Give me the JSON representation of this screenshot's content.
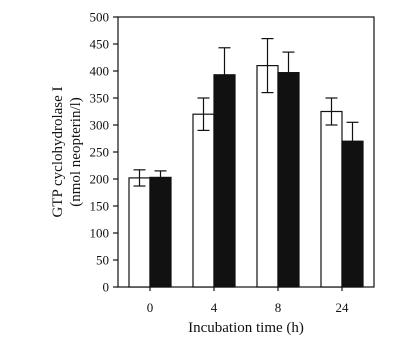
{
  "chart_data": {
    "type": "bar",
    "xlabel": "Incubation time (h)",
    "ylabel_line1": "GTP cyclohydrolase I",
    "ylabel_line2": "(nmol neopterin/l)",
    "ylim": [
      0,
      500
    ],
    "yticks": [
      "0",
      "50",
      "100",
      "150",
      "200",
      "250",
      "300",
      "350",
      "400",
      "450",
      "500"
    ],
    "categories": [
      "0",
      "4",
      "8",
      "24"
    ],
    "series": [
      {
        "values": [
          202,
          320,
          410,
          325
        ],
        "errors": [
          15,
          30,
          50,
          25
        ],
        "color": "#ffffff"
      },
      {
        "values": [
          203,
          393,
          397,
          270
        ],
        "errors": [
          12,
          50,
          38,
          35
        ],
        "color": "#111111"
      }
    ],
    "grid": false
  }
}
